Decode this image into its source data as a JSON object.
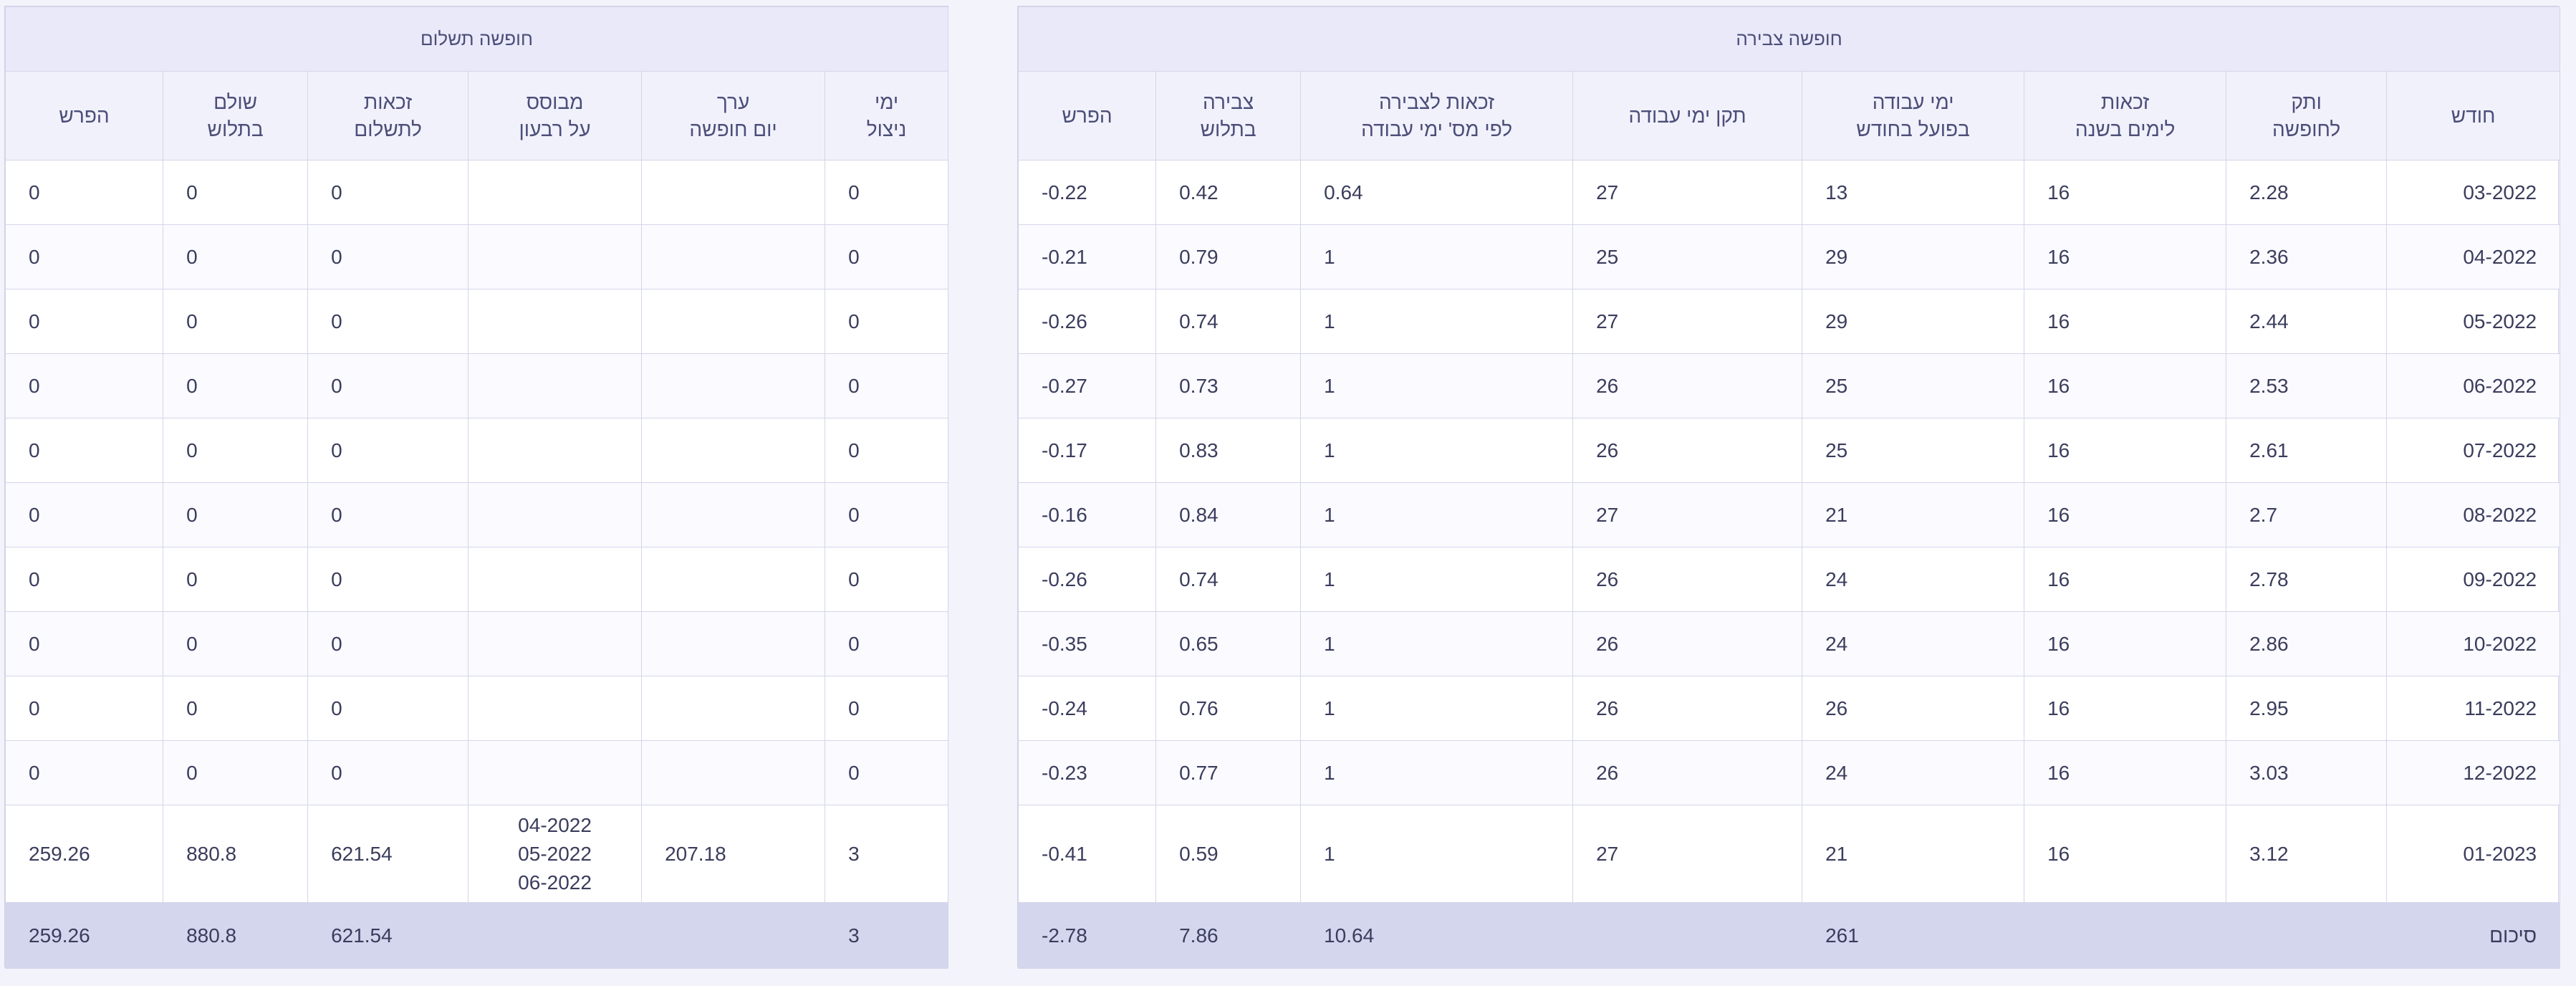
{
  "accrual": {
    "title": "חופשה צבירה",
    "columns": [
      {
        "l1": "חודש",
        "l2": ""
      },
      {
        "l1": "ותק",
        "l2": "לחופשה"
      },
      {
        "l1": "זכאות",
        "l2": "לימים בשנה"
      },
      {
        "l1": "ימי עבודה",
        "l2": "בפועל בחודש"
      },
      {
        "l1": "תקן ימי עבודה",
        "l2": ""
      },
      {
        "l1": "זכאות לצבירה",
        "l2": "לפי מס' ימי עבודה"
      },
      {
        "l1": "צבירה",
        "l2": "בתלוש"
      },
      {
        "l1": "הפרש",
        "l2": ""
      }
    ],
    "rows": [
      [
        "03-2022",
        "2.28",
        "16",
        "13",
        "27",
        "0.64",
        "0.42",
        "-0.22"
      ],
      [
        "04-2022",
        "2.36",
        "16",
        "29",
        "25",
        "1",
        "0.79",
        "-0.21"
      ],
      [
        "05-2022",
        "2.44",
        "16",
        "29",
        "27",
        "1",
        "0.74",
        "-0.26"
      ],
      [
        "06-2022",
        "2.53",
        "16",
        "25",
        "26",
        "1",
        "0.73",
        "-0.27"
      ],
      [
        "07-2022",
        "2.61",
        "16",
        "25",
        "26",
        "1",
        "0.83",
        "-0.17"
      ],
      [
        "08-2022",
        "2.7",
        "16",
        "21",
        "27",
        "1",
        "0.84",
        "-0.16"
      ],
      [
        "09-2022",
        "2.78",
        "16",
        "24",
        "26",
        "1",
        "0.74",
        "-0.26"
      ],
      [
        "10-2022",
        "2.86",
        "16",
        "24",
        "26",
        "1",
        "0.65",
        "-0.35"
      ],
      [
        "11-2022",
        "2.95",
        "16",
        "26",
        "26",
        "1",
        "0.76",
        "-0.24"
      ],
      [
        "12-2022",
        "3.03",
        "16",
        "24",
        "26",
        "1",
        "0.77",
        "-0.23"
      ],
      [
        "01-2023",
        "3.12",
        "16",
        "21",
        "27",
        "1",
        "0.59",
        "-0.41"
      ]
    ],
    "summary": [
      "סיכום",
      "",
      "",
      "261",
      "",
      "10.64",
      "7.86",
      "-2.78"
    ]
  },
  "payment": {
    "title": "חופשה תשלום",
    "columns": [
      {
        "l1": "ימי",
        "l2": "ניצול"
      },
      {
        "l1": "ערך",
        "l2": "יום חופשה"
      },
      {
        "l1": "מבוסס",
        "l2": "על רבעון"
      },
      {
        "l1": "זכאות",
        "l2": "לתשלום"
      },
      {
        "l1": "שולם",
        "l2": "בתלוש"
      },
      {
        "l1": "הפרש",
        "l2": ""
      }
    ],
    "rows": [
      [
        "0",
        "",
        "",
        "0",
        "0",
        "0"
      ],
      [
        "0",
        "",
        "",
        "0",
        "0",
        "0"
      ],
      [
        "0",
        "",
        "",
        "0",
        "0",
        "0"
      ],
      [
        "0",
        "",
        "",
        "0",
        "0",
        "0"
      ],
      [
        "0",
        "",
        "",
        "0",
        "0",
        "0"
      ],
      [
        "0",
        "",
        "",
        "0",
        "0",
        "0"
      ],
      [
        "0",
        "",
        "",
        "0",
        "0",
        "0"
      ],
      [
        "0",
        "",
        "",
        "0",
        "0",
        "0"
      ],
      [
        "0",
        "",
        "",
        "0",
        "0",
        "0"
      ],
      [
        "0",
        "",
        "",
        "0",
        "0",
        "0"
      ],
      [
        "3",
        "207.18",
        "",
        "621.54",
        "880.8",
        "259.26"
      ]
    ],
    "quarter_periods": [
      "04-2022",
      "05-2022",
      "06-2022"
    ],
    "summary": [
      "3",
      "",
      "",
      "621.54",
      "880.8",
      "259.26"
    ]
  }
}
